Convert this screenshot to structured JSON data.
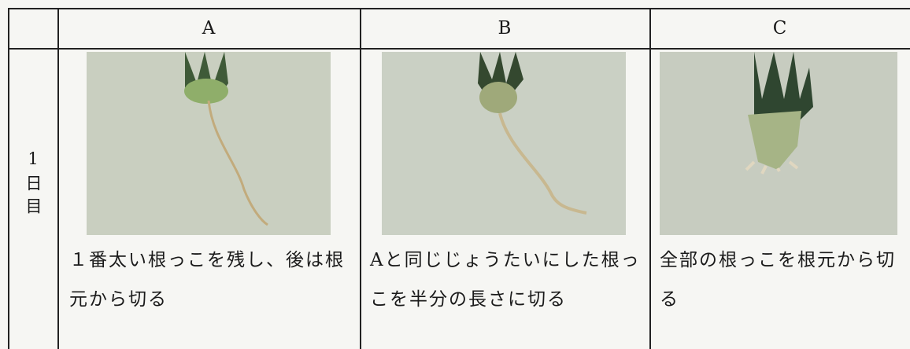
{
  "table": {
    "columns": [
      "A",
      "B",
      "C"
    ],
    "rows": [
      {
        "label": "1日目",
        "cells": [
          "１番太い根っこを残し、後は根元から切る",
          "Aと同じじょうたいにした根っこを半分の長さに切る",
          "全部の根っこを根元から切る"
        ]
      }
    ]
  }
}
